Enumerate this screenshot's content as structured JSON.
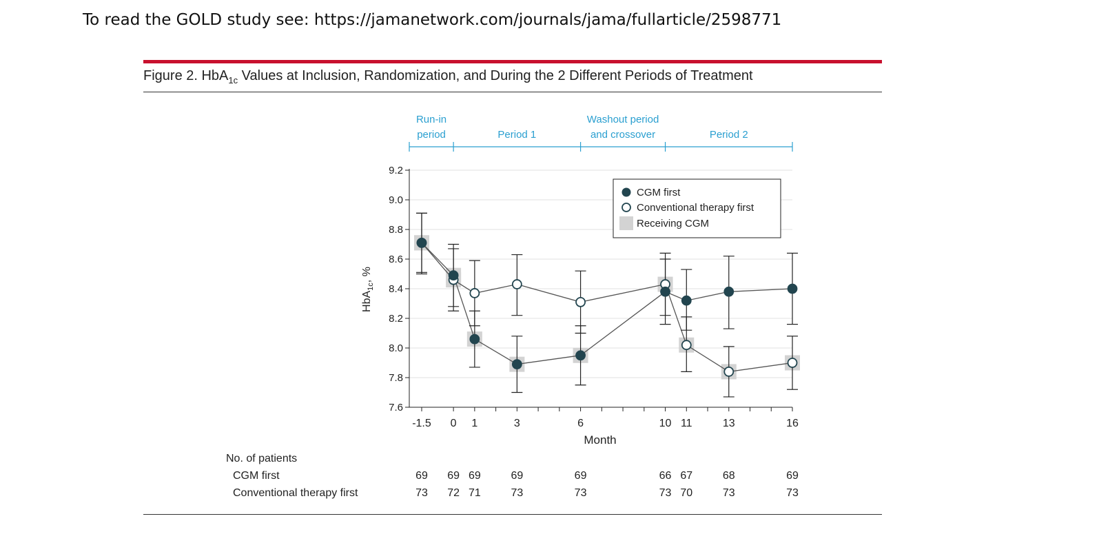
{
  "page": {
    "header_text": "To read the GOLD study see: https://jamanetwork.com/journals/jama/fullarticle/2598771",
    "figure_title_prefix": "Figure 2. HbA",
    "figure_title_sub": "1c",
    "figure_title_suffix": " Values at Inclusion, Randomization, and During the 2 Different Periods of Treatment",
    "accent_color": "#c8102e",
    "period_color": "#2a9fd0"
  },
  "chart_data": {
    "type": "line",
    "xlabel": "Month",
    "ylabel_prefix": "HbA",
    "ylabel_sub": "1c",
    "ylabel_suffix": ", %",
    "ylim": [
      7.6,
      9.2
    ],
    "y_ticks": [
      "7.6",
      "7.8",
      "8.0",
      "8.2",
      "8.4",
      "8.6",
      "8.8",
      "9.0",
      "9.2"
    ],
    "xlim": [
      -1.5,
      16
    ],
    "x_tick_labels": [
      {
        "x": -1.5,
        "label": "-1.5"
      },
      {
        "x": 0,
        "label": "0"
      },
      {
        "x": 1,
        "label": "1"
      },
      {
        "x": 3,
        "label": "3"
      },
      {
        "x": 6,
        "label": "6"
      },
      {
        "x": 10,
        "label": "10"
      },
      {
        "x": 11,
        "label": "11"
      },
      {
        "x": 13,
        "label": "13"
      },
      {
        "x": 16,
        "label": "16"
      }
    ],
    "x_minor_ticks": [
      1,
      2,
      3,
      4,
      5,
      6,
      7,
      8,
      9,
      10,
      11,
      12,
      13,
      14,
      15,
      16
    ],
    "grid": true,
    "legend_position": "top-right",
    "legend": [
      {
        "label": "CGM first",
        "marker": "filled-circle"
      },
      {
        "label": "Conventional therapy first",
        "marker": "open-circle"
      },
      {
        "label": "Receiving CGM",
        "marker": "gray-square"
      }
    ],
    "periods": [
      {
        "label_lines": [
          "Run-in",
          "period"
        ],
        "start": -1.5,
        "end": 0
      },
      {
        "label_lines": [
          "Period 1"
        ],
        "start": 0,
        "end": 6
      },
      {
        "label_lines": [
          "Washout period",
          "and crossover"
        ],
        "start": 6,
        "end": 10
      },
      {
        "label_lines": [
          "Period 2"
        ],
        "start": 10,
        "end": 16
      }
    ],
    "series": [
      {
        "name": "CGM first",
        "marker": "filled",
        "color": "#22454f",
        "points": [
          {
            "x": -1.5,
            "y": 8.71,
            "lo": 8.51,
            "hi": 8.91,
            "cgm": true
          },
          {
            "x": 0,
            "y": 8.49,
            "lo": 8.28,
            "hi": 8.7,
            "cgm": true
          },
          {
            "x": 1,
            "y": 8.06,
            "lo": 7.87,
            "hi": 8.25,
            "cgm": true
          },
          {
            "x": 3,
            "y": 7.89,
            "lo": 7.7,
            "hi": 8.08,
            "cgm": true
          },
          {
            "x": 6,
            "y": 7.95,
            "lo": 7.75,
            "hi": 8.15,
            "cgm": true
          },
          {
            "x": 10,
            "y": 8.38,
            "lo": 8.16,
            "hi": 8.6,
            "cgm": false
          },
          {
            "x": 11,
            "y": 8.32,
            "lo": 8.12,
            "hi": 8.53,
            "cgm": false
          },
          {
            "x": 13,
            "y": 8.38,
            "lo": 8.13,
            "hi": 8.62,
            "cgm": false
          },
          {
            "x": 16,
            "y": 8.4,
            "lo": 8.16,
            "hi": 8.64,
            "cgm": false
          }
        ]
      },
      {
        "name": "Conventional therapy first",
        "marker": "open",
        "color": "#22454f",
        "points": [
          {
            "x": -1.5,
            "y": 8.71,
            "lo": 8.5,
            "hi": 8.91,
            "cgm": true
          },
          {
            "x": 0,
            "y": 8.46,
            "lo": 8.25,
            "hi": 8.67,
            "cgm": true
          },
          {
            "x": 1,
            "y": 8.37,
            "lo": 8.15,
            "hi": 8.59,
            "cgm": false
          },
          {
            "x": 3,
            "y": 8.43,
            "lo": 8.22,
            "hi": 8.63,
            "cgm": false
          },
          {
            "x": 6,
            "y": 8.31,
            "lo": 8.1,
            "hi": 8.52,
            "cgm": false
          },
          {
            "x": 10,
            "y": 8.43,
            "lo": 8.22,
            "hi": 8.64,
            "cgm": true
          },
          {
            "x": 11,
            "y": 8.02,
            "lo": 7.84,
            "hi": 8.21,
            "cgm": true
          },
          {
            "x": 13,
            "y": 7.84,
            "lo": 7.67,
            "hi": 8.01,
            "cgm": true
          },
          {
            "x": 16,
            "y": 7.9,
            "lo": 7.72,
            "hi": 8.08,
            "cgm": true
          }
        ]
      }
    ],
    "patients_table": {
      "title": "No. of patients",
      "rows": [
        {
          "label": "CGM first",
          "counts": [
            "69",
            "69",
            "69",
            "69",
            "69",
            "66",
            "67",
            "68",
            "69"
          ]
        },
        {
          "label": "Conventional therapy first",
          "counts": [
            "73",
            "72",
            "71",
            "73",
            "73",
            "73",
            "70",
            "73",
            "73"
          ]
        }
      ],
      "x_positions": [
        -1.5,
        0,
        1,
        3,
        6,
        10,
        11,
        13,
        16
      ]
    }
  }
}
